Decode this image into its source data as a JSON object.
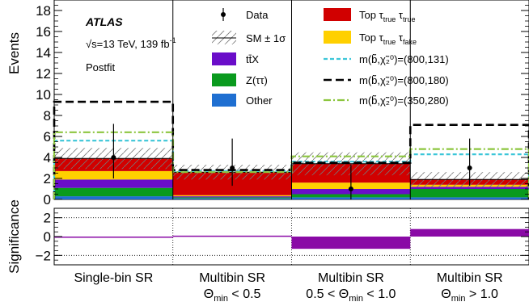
{
  "chart_data": [
    {
      "type": "bar",
      "subtype": "stacked-histogram",
      "ylabel": "Events",
      "ylim": [
        0,
        19
      ],
      "yticks": [
        0,
        2,
        4,
        6,
        8,
        10,
        12,
        14,
        16,
        18
      ],
      "experiment": "ATLAS",
      "energy": "√s=13 TeV, 139 fb",
      "energy_sup": "-1",
      "fit_label": "Postfit",
      "categories": [
        {
          "line1": "Single-bin SR",
          "line2": ""
        },
        {
          "line1": "Multibin SR",
          "line2": "Θ",
          "line2_sub": "min",
          "line2_rest": " < 0.5"
        },
        {
          "line1": "Multibin SR",
          "line2": "0.5 < Θ",
          "line2_sub": "min",
          "line2_rest": " < 1.0"
        },
        {
          "line1": "Multibin SR",
          "line2": "Θ",
          "line2_sub": "min",
          "line2_rest": " > 1.0"
        }
      ],
      "series": [
        {
          "name": "Other",
          "color": "#1f6fd1",
          "values": [
            0.3,
            0.1,
            0.2,
            0.2
          ]
        },
        {
          "name": "Z(ττ)",
          "color": "#0a9a1e",
          "values": [
            0.8,
            0.1,
            0.3,
            0.8
          ]
        },
        {
          "name": "ttX",
          "color": "#6a0dc9",
          "values": [
            0.8,
            0.1,
            0.5,
            0.2
          ]
        },
        {
          "name": "Top τfake",
          "color": "#ffd000",
          "values": [
            0.8,
            0.1,
            0.6,
            0.2
          ]
        },
        {
          "name": "Top τtrue τtrue",
          "color": "#d10000",
          "values": [
            1.2,
            2.2,
            1.8,
            0.5
          ]
        }
      ],
      "data": {
        "name": "Data",
        "values": [
          4,
          3,
          1,
          3
        ],
        "err_low": [
          2.0,
          1.7,
          1.0,
          1.7
        ],
        "err_high": [
          3.2,
          2.8,
          2.3,
          2.8
        ]
      },
      "uncertainty": {
        "name": "SM ± 1σ",
        "total": [
          3.9,
          2.6,
          3.4,
          1.9
        ],
        "low": [
          2.9,
          1.9,
          2.3,
          1.2
        ],
        "high": [
          4.9,
          3.3,
          4.5,
          2.6
        ]
      },
      "signals": [
        {
          "name": "m(b̃,χ̃₂⁰)=(800,131)",
          "color": "#3cc6d8",
          "dash": "cyan-short",
          "values": [
            5.6,
            2.7,
            3.6,
            4.3
          ]
        },
        {
          "name": "m(b̃,χ̃₂⁰)=(800,180)",
          "color": "#000000",
          "dash": "long",
          "values": [
            9.3,
            2.8,
            3.5,
            7.1
          ]
        },
        {
          "name": "m(b̃,χ̃₂⁰)=(350,280)",
          "color": "#8cc63e",
          "dash": "dashdot",
          "values": [
            6.4,
            2.6,
            4.1,
            4.8
          ]
        }
      ]
    },
    {
      "type": "bar",
      "subtype": "significance",
      "ylabel": "Significance",
      "ylim": [
        -3,
        3
      ],
      "yticks": [
        -2,
        0,
        2
      ],
      "ytick_labels": [
        "−2",
        "0",
        "2"
      ],
      "reference_lines": [
        -2,
        2
      ],
      "color": "#8a0aa6",
      "values": [
        0.0,
        0.1,
        -1.3,
        0.8
      ]
    }
  ],
  "legend": {
    "data": "Data",
    "sm_label": "SM ± 1",
    "sm_sigma": "σ",
    "ttx": "tt̄X",
    "ztautau": "Z(ττ)",
    "other": "Other",
    "top_tt_1": "Top τ",
    "top_tt_sub1": "true",
    "top_tt_2": " τ",
    "top_tt_sub2": "true",
    "top_tf_1": "Top τ",
    "top_tf_sub1": "true",
    "top_tf_2": " τ",
    "top_tf_sub2": "fake",
    "sig1": "m(b̃,χ̃₂⁰)=(800,131)",
    "sig2": "m(b̃,χ̃₂⁰)=(800,180)",
    "sig3": "m(b̃,χ̃₂⁰)=(350,280)"
  }
}
